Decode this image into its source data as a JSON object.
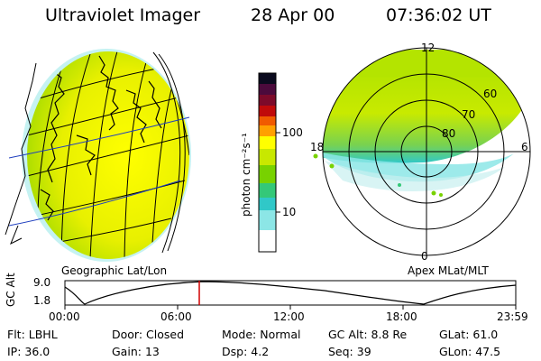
{
  "header": {
    "instrument": "Ultraviolet Imager",
    "date": "28 Apr 00",
    "time": "07:36:02 UT"
  },
  "colorbar": {
    "unit_label": "photon cm⁻²s⁻¹",
    "ticks": [
      "100",
      "10"
    ],
    "scale": "log",
    "colors_top_to_bottom": [
      "#0a0a1e",
      "#4b0a3c",
      "#7c0a2a",
      "#c00a0a",
      "#f05a00",
      "#ffa000",
      "#ffff00",
      "#c8e800",
      "#78d200",
      "#34c878",
      "#30c8c8",
      "#8ce6e6",
      "#ffffff"
    ]
  },
  "left_panel": {
    "label": "Geographic Lat/Lon"
  },
  "right_panel": {
    "label": "Apex MLat/MLT",
    "mlt_labels": {
      "top": "12",
      "left": "18",
      "right": "6",
      "bottom": "0"
    },
    "lat_labels": [
      "60",
      "70",
      "80"
    ]
  },
  "timeline": {
    "ylabel": "GC Alt",
    "y_ticks": [
      "9.0",
      "1.8"
    ],
    "x_ticks": [
      "00:00",
      "06:00",
      "12:00",
      "18:00",
      "23:59"
    ],
    "current_time_marker": "07:36",
    "marker_color": "#d00000"
  },
  "info": {
    "row1": [
      {
        "label": "Flt:",
        "value": "LBHL"
      },
      {
        "label": "Door:",
        "value": "Closed"
      },
      {
        "label": "Mode:",
        "value": "Normal"
      },
      {
        "label": "GC Alt:",
        "value": "8.8 Re"
      },
      {
        "label": "GLat:",
        "value": "61.0"
      }
    ],
    "row2": [
      {
        "label": "IP:",
        "value": "36.0"
      },
      {
        "label": "Gain:",
        "value": "13"
      },
      {
        "label": "Dsp:",
        "value": "4.2"
      },
      {
        "label": "Seq:",
        "value": "39"
      },
      {
        "label": "GLon:",
        "value": "47.5"
      }
    ]
  }
}
